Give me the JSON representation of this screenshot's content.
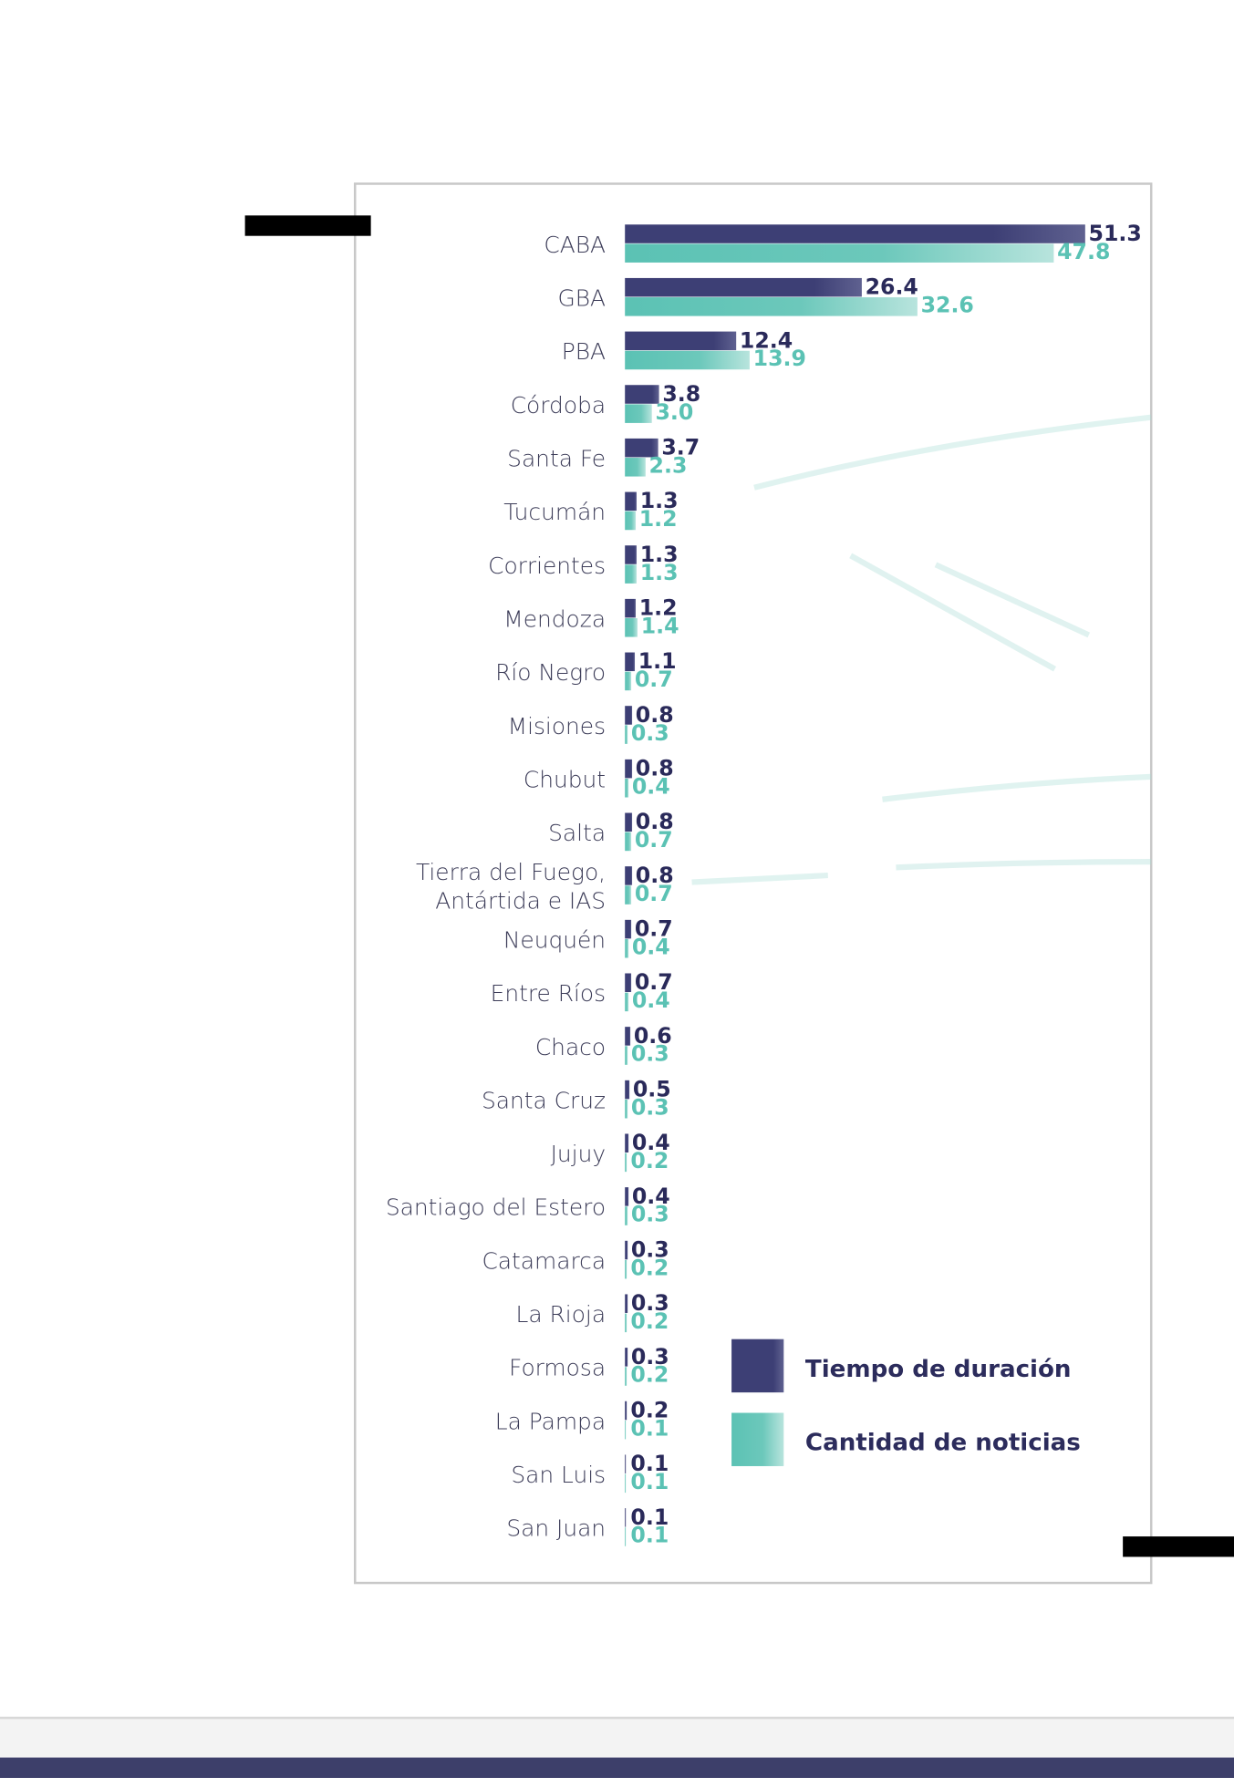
{
  "chart_data": {
    "type": "bar",
    "orientation": "horizontal",
    "categories": [
      "CABA",
      "GBA",
      "PBA",
      "Córdoba",
      "Santa Fe",
      "Tucumán",
      "Corrientes",
      "Mendoza",
      "Río Negro",
      "Misiones",
      "Chubut",
      "Salta",
      "Tierra del Fuego,\nAntártida e IAS",
      "Neuquén",
      "Entre Ríos",
      "Chaco",
      "Santa Cruz",
      "Jujuy",
      "Santiago del Estero",
      "Catamarca",
      "La Rioja",
      "Formosa",
      "La Pampa",
      "San Luis",
      "San Juan"
    ],
    "series": [
      {
        "name": "Tiempo de duración",
        "color": "#3d3f75",
        "label_color": "#2a2a5a",
        "values": [
          51.3,
          26.4,
          12.4,
          3.8,
          3.7,
          1.3,
          1.3,
          1.2,
          1.1,
          0.8,
          0.8,
          0.8,
          0.8,
          0.7,
          0.7,
          0.6,
          0.5,
          0.4,
          0.4,
          0.3,
          0.3,
          0.3,
          0.2,
          0.1,
          0.1
        ],
        "value_labels": [
          "51.3",
          "26.4",
          "12.4",
          "3.8",
          "3.7",
          "1.3",
          "1.3",
          "1.2",
          "1.1",
          "0.8",
          "0.8",
          "0.8",
          "0.8",
          "0.7",
          "0.7",
          "0.6",
          "0.5",
          "0.4",
          "0.4",
          "0.3",
          "0.3",
          "0.3",
          "0.2",
          "0.1",
          "0.1"
        ]
      },
      {
        "name": "Cantidad de noticias",
        "color": "#5bc2b4",
        "label_color": "#5bc2b4",
        "values": [
          47.8,
          32.6,
          13.9,
          3.0,
          2.3,
          1.2,
          1.3,
          1.4,
          0.7,
          0.3,
          0.4,
          0.7,
          0.7,
          0.4,
          0.4,
          0.3,
          0.3,
          0.2,
          0.3,
          0.2,
          0.2,
          0.2,
          0.1,
          0.1,
          0.1
        ],
        "value_labels": [
          "47.8",
          "32.6",
          "13.9",
          "3.0",
          "2.3",
          "1.2",
          "1.3",
          "1.4",
          "0.7",
          "0.3",
          "0.4",
          "0.7",
          "0.7",
          "0.4",
          "0.4",
          "0.3",
          "0.3",
          "0.2",
          "0.3",
          "0.2",
          "0.2",
          "0.2",
          "0.1",
          "0.1",
          "0.1"
        ]
      }
    ],
    "xlim": [
      0,
      55
    ]
  }
}
